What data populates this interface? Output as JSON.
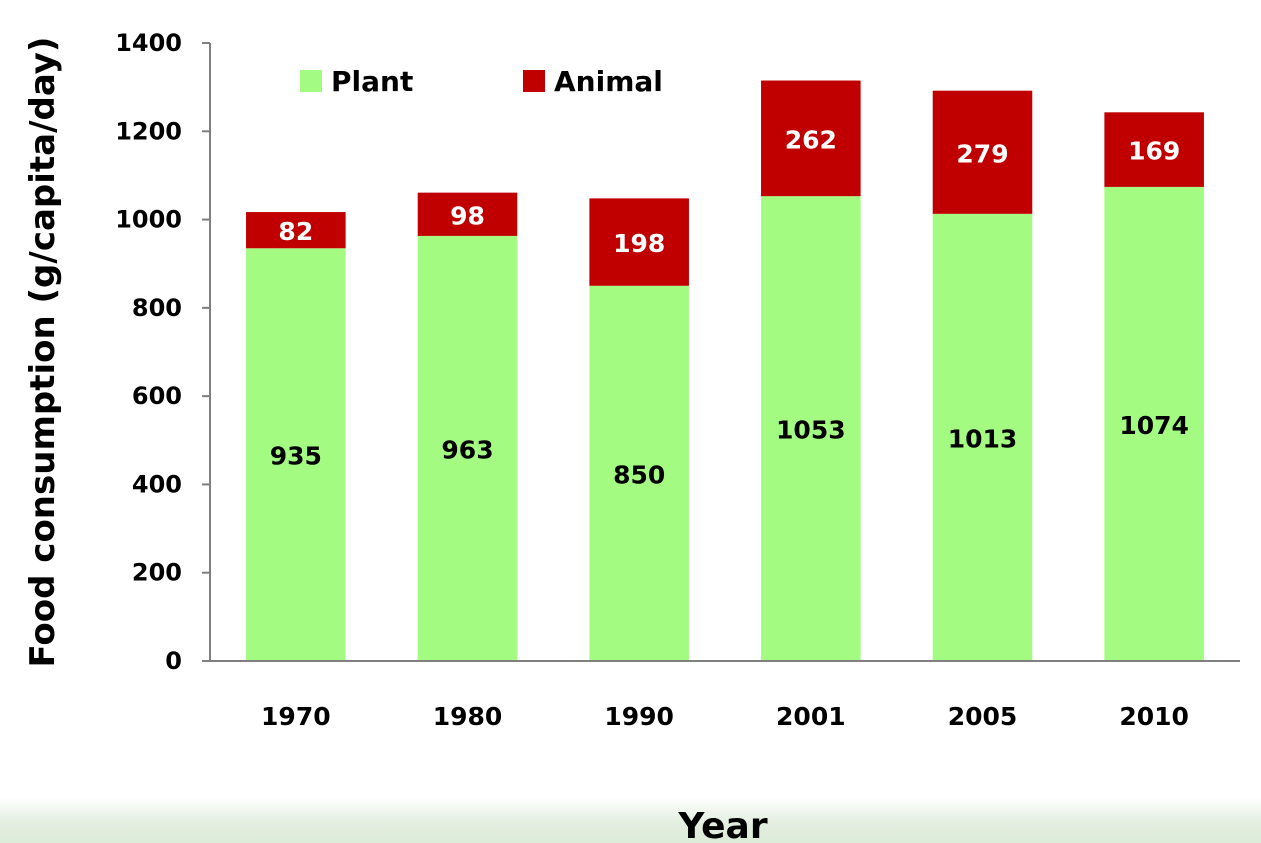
{
  "chart_data": {
    "type": "bar",
    "stacked": true,
    "categories": [
      "1970",
      "1980",
      "1990",
      "2001",
      "2005",
      "2010"
    ],
    "series": [
      {
        "name": "Plant",
        "values": [
          935,
          963,
          850,
          1053,
          1013,
          1074
        ],
        "color": "#a3fc81",
        "labels": [
          "935",
          "963",
          "850",
          "1053",
          "1013",
          "1074"
        ]
      },
      {
        "name": "Animal",
        "values": [
          82,
          98,
          198,
          262,
          279,
          169
        ],
        "color": "#c00000",
        "labels": [
          "82",
          "98",
          "198",
          "262",
          "279",
          "169"
        ]
      }
    ],
    "title": "",
    "xlabel": "Year",
    "ylabel": "Food consumption  (g/capita/day)",
    "ylim": [
      0,
      1400
    ],
    "yticks": [
      "0",
      "200",
      "400",
      "600",
      "800",
      "1000",
      "1200",
      "1400"
    ],
    "legend_position": "top-left",
    "grid": false
  }
}
